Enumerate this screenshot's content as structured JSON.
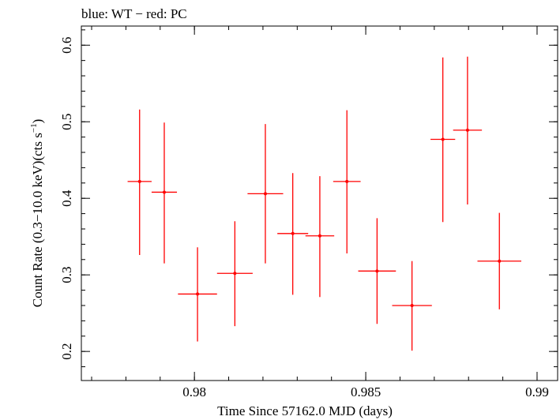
{
  "chart_data": {
    "type": "scatter",
    "title": "blue: WT − red: PC",
    "xlabel": "Time Since 57162.0 MJD (days)",
    "ylabel": {
      "prefix": "Count Rate (0.3−10.0 keV)(cts s",
      "sup": "−1",
      "suffix": ")"
    },
    "xlim": [
      0.9767,
      0.9906
    ],
    "ylim": [
      0.162,
      0.625
    ],
    "xticks": [
      {
        "value": 0.98,
        "label": "0.98"
      },
      {
        "value": 0.985,
        "label": "0.985"
      },
      {
        "value": 0.99,
        "label": "0.99"
      }
    ],
    "yticks": [
      {
        "value": 0.2,
        "label": "0.2"
      },
      {
        "value": 0.3,
        "label": "0.3"
      },
      {
        "value": 0.4,
        "label": "0.4"
      },
      {
        "value": 0.5,
        "label": "0.5"
      },
      {
        "value": 0.6,
        "label": "0.6"
      }
    ],
    "xminor_step": 0.001,
    "yminor_step": 0.02,
    "grid": false,
    "colors": {
      "PC": "#ff0000",
      "WT": "#0000ff",
      "axes": "#000000"
    },
    "series": [
      {
        "name": "PC",
        "color": "#ff0000",
        "points": [
          {
            "x": 0.9784,
            "xerr": 0.00035,
            "y": 0.422,
            "ylo": 0.326,
            "yhi": 0.516
          },
          {
            "x": 0.97912,
            "xerr": 0.00037,
            "y": 0.408,
            "ylo": 0.315,
            "yhi": 0.499
          },
          {
            "x": 0.98009,
            "xerr": 0.00057,
            "y": 0.275,
            "ylo": 0.213,
            "yhi": 0.336
          },
          {
            "x": 0.98118,
            "xerr": 0.00052,
            "y": 0.302,
            "ylo": 0.233,
            "yhi": 0.37
          },
          {
            "x": 0.98207,
            "xerr": 0.00052,
            "y": 0.406,
            "ylo": 0.315,
            "yhi": 0.497
          },
          {
            "x": 0.98287,
            "xerr": 0.00045,
            "y": 0.354,
            "ylo": 0.274,
            "yhi": 0.433
          },
          {
            "x": 0.98366,
            "xerr": 0.00042,
            "y": 0.351,
            "ylo": 0.271,
            "yhi": 0.429
          },
          {
            "x": 0.98445,
            "xerr": 0.0004,
            "y": 0.422,
            "ylo": 0.328,
            "yhi": 0.515
          },
          {
            "x": 0.98533,
            "xerr": 0.00055,
            "y": 0.305,
            "ylo": 0.236,
            "yhi": 0.374
          },
          {
            "x": 0.98635,
            "xerr": 0.00058,
            "y": 0.26,
            "ylo": 0.201,
            "yhi": 0.318
          },
          {
            "x": 0.98725,
            "xerr": 0.00036,
            "y": 0.477,
            "ylo": 0.369,
            "yhi": 0.584
          },
          {
            "x": 0.98797,
            "xerr": 0.00042,
            "y": 0.489,
            "ylo": 0.392,
            "yhi": 0.585
          },
          {
            "x": 0.9889,
            "xerr": 0.00064,
            "y": 0.318,
            "ylo": 0.255,
            "yhi": 0.381
          }
        ]
      }
    ]
  }
}
